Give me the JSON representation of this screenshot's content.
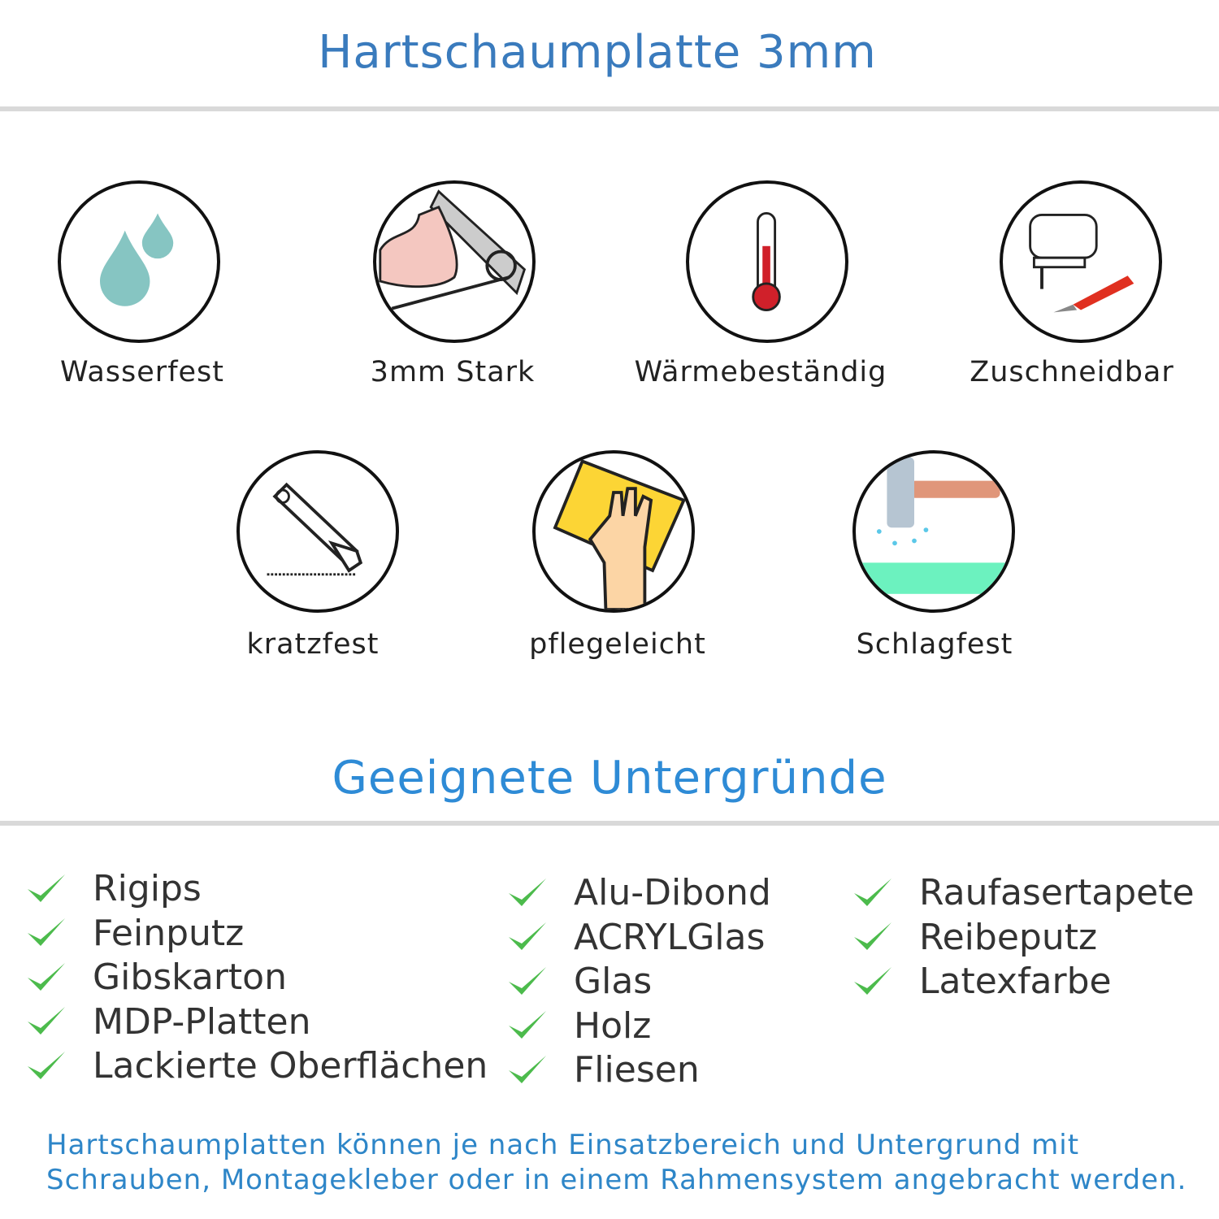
{
  "header": {
    "title": "Hartschaumplatte 3mm"
  },
  "features": [
    {
      "label": "Wasserfest",
      "icon": "water-drops-icon"
    },
    {
      "label": "3mm Stark",
      "icon": "strong-arm-icon"
    },
    {
      "label": "Wärmebeständig",
      "icon": "thermometer-icon"
    },
    {
      "label": "Zuschneidbar",
      "icon": "jigsaw-knife-icon"
    },
    {
      "label": "kratzfest",
      "icon": "cutter-knife-icon"
    },
    {
      "label": "pflegeleicht",
      "icon": "cleaning-hand-icon"
    },
    {
      "label": "Schlagfest",
      "icon": "hammer-icon"
    }
  ],
  "surfaces": {
    "title": "Geeignete Untergründe",
    "check_color": "#4cbb4c",
    "columns": [
      [
        "Rigips",
        "Feinputz",
        "Gibskarton",
        "MDP-Platten",
        "Lackierte Oberflächen"
      ],
      [
        "Alu-Dibond",
        "ACRYLGlas",
        "Glas",
        "Holz",
        "Fliesen"
      ],
      [
        "Raufasertapete",
        "Reibeputz",
        "Latexfarbe"
      ]
    ]
  },
  "footer": {
    "line1": "Hartschaumplatten können je nach Einsatzbereich und Untergrund mit",
    "line2": "Schrauben, Montagekleber oder in einem Rahmensystem angebracht werden."
  },
  "colors": {
    "title": "#3a7bbd",
    "subtitle": "#2e8bd6",
    "footer": "#2e86c8",
    "text": "#333333"
  }
}
